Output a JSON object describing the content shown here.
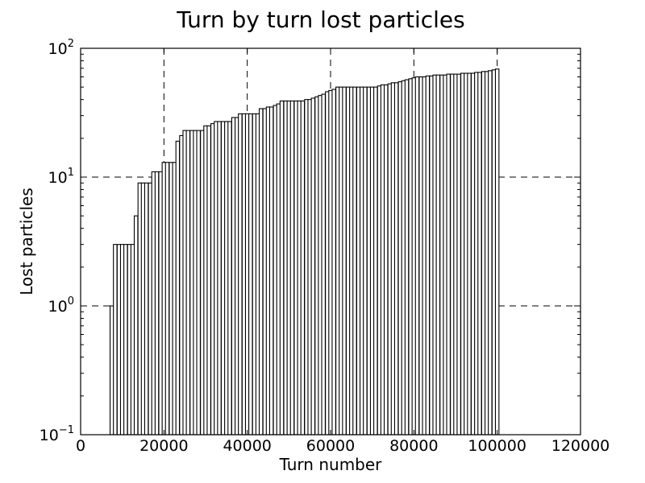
{
  "chart_data": {
    "type": "bar",
    "title": "Turn by turn lost particles",
    "xlabel": "Turn number",
    "ylabel": "Lost particles",
    "xscale": "linear",
    "yscale": "log",
    "xlim": [
      0,
      120000
    ],
    "ylim": [
      0.1,
      100
    ],
    "grid": true,
    "xticks": [
      0,
      20000,
      40000,
      60000,
      80000,
      100000,
      120000
    ],
    "xtick_labels": [
      "0",
      "20000",
      "40000",
      "60000",
      "80000",
      "100000",
      "120000"
    ],
    "yticks": [
      {
        "value": 0.1,
        "base": "10",
        "exponent": "−1"
      },
      {
        "value": 1,
        "base": "10",
        "exponent": "0"
      },
      {
        "value": 10,
        "base": "10",
        "exponent": "1"
      },
      {
        "value": 100,
        "base": "10",
        "exponent": "2"
      }
    ],
    "bar_width": 850,
    "x": [
      7500,
      8300,
      9200,
      10000,
      10800,
      11700,
      12500,
      13300,
      14200,
      15000,
      15800,
      16700,
      17500,
      18300,
      19200,
      20000,
      20800,
      21700,
      22500,
      23300,
      24200,
      25000,
      25800,
      26700,
      27500,
      28300,
      29200,
      30000,
      30800,
      31700,
      32500,
      33300,
      34200,
      35000,
      35800,
      36700,
      37500,
      38300,
      39200,
      40000,
      40800,
      41700,
      42500,
      43300,
      44200,
      45000,
      45800,
      46700,
      47500,
      48300,
      49200,
      50000,
      50800,
      51700,
      52500,
      53300,
      54200,
      55000,
      55800,
      56700,
      57500,
      58300,
      59200,
      60000,
      60800,
      61700,
      62500,
      63300,
      64200,
      65000,
      65800,
      66700,
      67500,
      68300,
      69200,
      70000,
      70800,
      71700,
      72500,
      73300,
      74200,
      75000,
      75800,
      76700,
      77500,
      78300,
      79200,
      80000,
      80800,
      81700,
      82500,
      83300,
      84200,
      85000,
      85800,
      86700,
      87500,
      88300,
      89200,
      90000,
      90800,
      91700,
      92500,
      93300,
      94200,
      95000,
      95800,
      96700,
      97500,
      98300,
      99200,
      100000
    ],
    "values": [
      1,
      3,
      3,
      3,
      3,
      3,
      3,
      5,
      9,
      9,
      9,
      9,
      11,
      11,
      11,
      13,
      13,
      13,
      13,
      19,
      21,
      23,
      23,
      23,
      23,
      23,
      23,
      25,
      25,
      26,
      27,
      27,
      27,
      27,
      27,
      29,
      29,
      31,
      31,
      31,
      31,
      31,
      31,
      34,
      34,
      35,
      35,
      36,
      37,
      39,
      39,
      39,
      39,
      39,
      39,
      39,
      40,
      40,
      41,
      42,
      43,
      44,
      46,
      47,
      48,
      50,
      50,
      50,
      50,
      50,
      50,
      50,
      50,
      50,
      50,
      50,
      50,
      51,
      52,
      52,
      53,
      54,
      54,
      55,
      56,
      57,
      58,
      59,
      60,
      60,
      60,
      61,
      61,
      62,
      62,
      62,
      62,
      63,
      63,
      63,
      63,
      64,
      64,
      64,
      64,
      65,
      65,
      66,
      66,
      67,
      68,
      69
    ]
  }
}
